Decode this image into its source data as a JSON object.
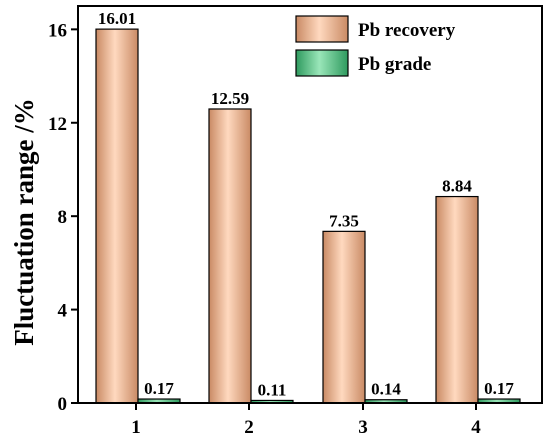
{
  "chart_data": {
    "type": "bar",
    "title": "",
    "xlabel": "",
    "ylabel": "Fluctuation range /%",
    "categories": [
      "1",
      "2",
      "3",
      "4"
    ],
    "ylim": [
      0,
      17
    ],
    "yticks": [
      0,
      4,
      8,
      12,
      16
    ],
    "grid": false,
    "legend_position": "top-right",
    "series": [
      {
        "name": "Pb recovery",
        "values": [
          16.01,
          12.59,
          7.35,
          8.84
        ],
        "labels": [
          "16.01",
          "12.59",
          "7.35",
          "8.84"
        ],
        "color": "#f4b48a"
      },
      {
        "name": "Pb grade",
        "values": [
          0.17,
          0.11,
          0.14,
          0.17
        ],
        "labels": [
          "0.17",
          "0.11",
          "0.14",
          "0.17"
        ],
        "color": "#5fca8c"
      }
    ]
  }
}
